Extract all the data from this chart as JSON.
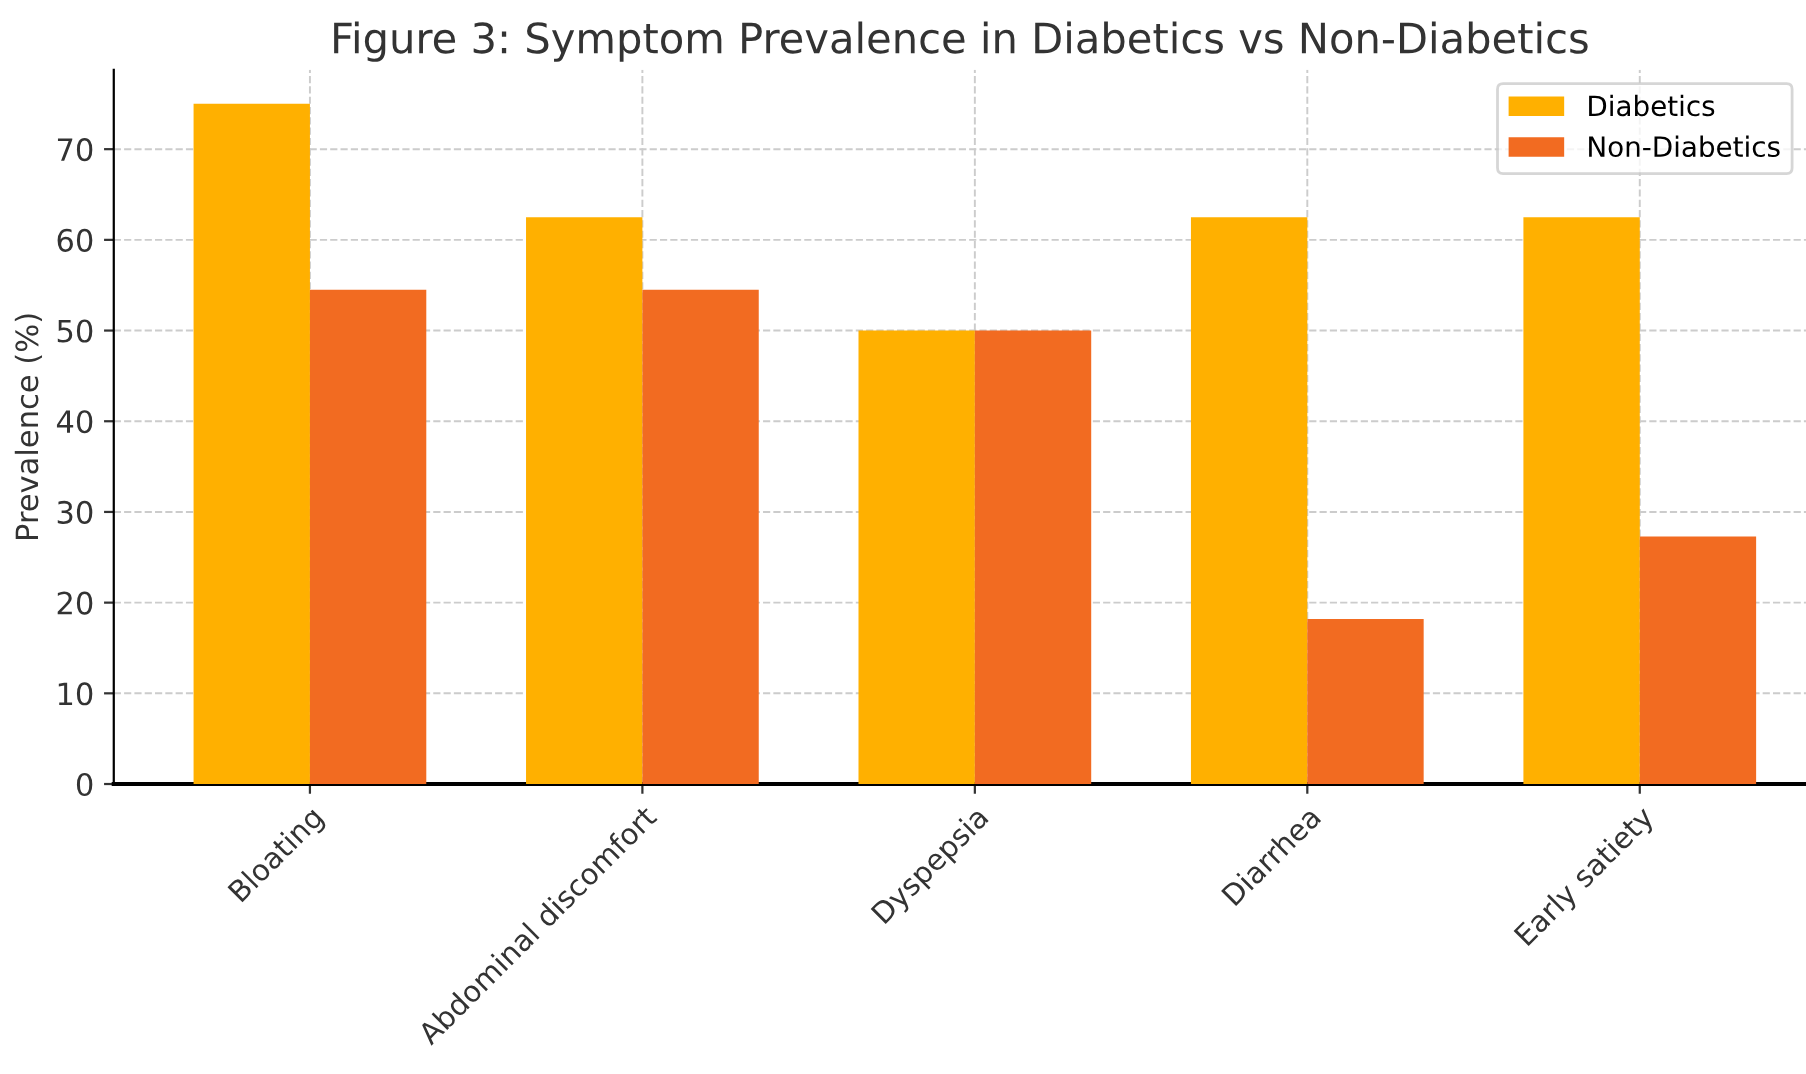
{
  "chart_data": {
    "type": "bar",
    "title": "Figure 3: Symptom Prevalence in Diabetics vs Non-Diabetics",
    "ylabel": "Prevalence (%)",
    "categories": [
      "Bloating",
      "Abdominal discomfort",
      "Dyspepsia",
      "Diarrhea",
      "Early satiety"
    ],
    "series": [
      {
        "name": "Diabetics",
        "color": "#ffb000",
        "values": [
          75,
          62.5,
          50,
          62.5,
          62.5
        ]
      },
      {
        "name": "Non-Diabetics",
        "color": "#f26b21",
        "values": [
          54.5,
          54.5,
          50,
          18.2,
          27.3
        ]
      }
    ],
    "ylim": [
      0,
      78.75
    ],
    "yticks": [
      0,
      10,
      20,
      30,
      40,
      50,
      60,
      70
    ],
    "grid": true,
    "legend": "top right"
  }
}
